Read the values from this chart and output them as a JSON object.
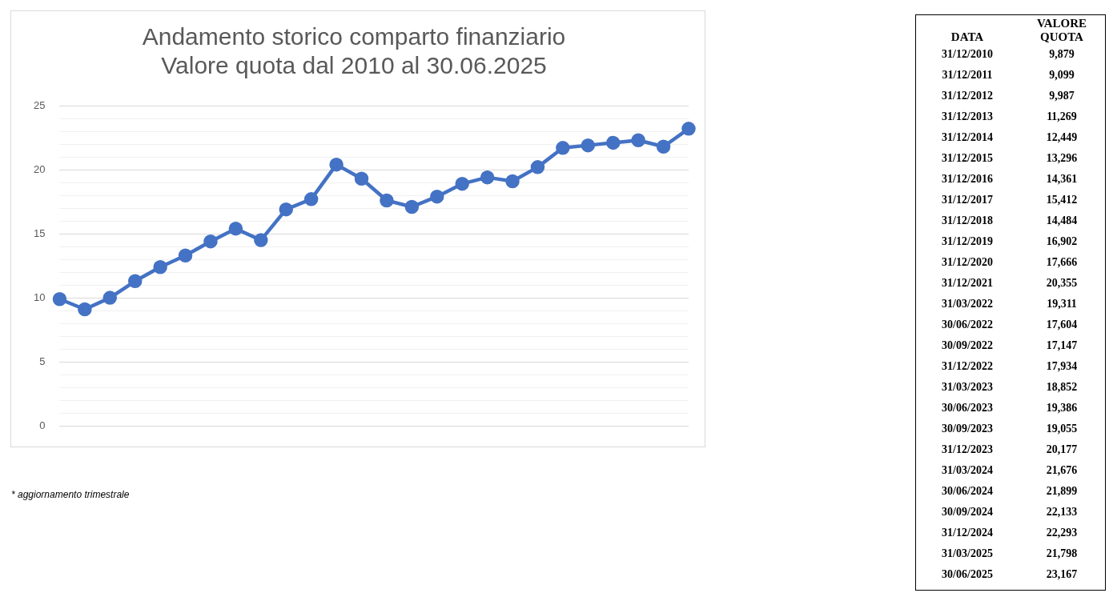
{
  "chart_data": [
    {
      "type": "line",
      "title": "Andamento storico comparto finanziario\nValore quota dal 2010 al 30.06.2025",
      "categories": [
        null,
        null,
        null,
        null,
        null,
        null,
        null,
        null,
        null,
        null,
        null,
        null,
        null,
        null,
        null,
        null,
        null,
        null,
        null,
        null,
        null,
        null,
        null,
        null,
        null,
        null
      ],
      "series": [
        {
          "color": "#4472c4",
          "values": [
            9.9,
            9.1,
            10.0,
            11.3,
            12.4,
            13.3,
            14.4,
            15.4,
            14.5,
            16.9,
            17.7,
            20.4,
            19.3,
            17.6,
            17.1,
            17.9,
            18.9,
            19.4,
            19.1,
            20.2,
            21.7,
            21.9,
            22.1,
            22.3,
            21.8,
            23.2
          ]
        }
      ],
      "ylim": [
        0,
        25
      ],
      "yticks": [
        0,
        {
          "value": 1,
          "label": null
        },
        {
          "value": 2,
          "label": null
        },
        {
          "value": 3,
          "label": null
        },
        {
          "value": 4,
          "label": null
        },
        5,
        {
          "value": 6,
          "label": null
        },
        {
          "value": 7,
          "label": null
        },
        {
          "value": 8,
          "label": null
        },
        {
          "value": 9,
          "label": null
        },
        10,
        {
          "value": 11,
          "label": null
        },
        {
          "value": 12,
          "label": null
        },
        {
          "value": 13,
          "label": null
        },
        {
          "value": 14,
          "label": null
        },
        15,
        {
          "value": 16,
          "label": null
        },
        {
          "value": 17,
          "label": null
        },
        {
          "value": 18,
          "label": null
        },
        {
          "value": 19,
          "label": null
        },
        20,
        {
          "value": 21,
          "label": null
        },
        {
          "value": 22,
          "label": null
        },
        {
          "value": 23,
          "label": null
        },
        {
          "value": 24,
          "label": null
        },
        25
      ],
      "grid": "y",
      "marker": "circle",
      "line_style": "solid",
      "tick_labels": "y",
      "annotations": [
        "* aggiornamento trimestrale"
      ]
    },
    {
      "type": "other",
      "annotations": [
        "DATA",
        "VALORE QUOTA",
        "31/12/2010",
        "9,879",
        "31/12/2011",
        "9,099",
        "31/12/2012",
        "9,987",
        "31/12/2013",
        "11,269",
        "31/12/2014",
        "12,449",
        "31/12/2015",
        "13,296",
        "31/12/2016",
        "14,361",
        "31/12/2017",
        "15,412",
        "31/12/2018",
        "14,484",
        "31/12/2019",
        "16,902",
        "31/12/2020",
        "17,666",
        "31/12/2021",
        "20,355",
        "31/03/2022",
        "19,311",
        "30/06/2022",
        "17,604",
        "30/09/2022",
        "17,147",
        "31/12/2022",
        "17,934",
        "31/03/2023",
        "18,852",
        "30/06/2023",
        "19,386",
        "30/09/2023",
        "19,055",
        "31/12/2023",
        "20,177",
        "31/03/2024",
        "21,676",
        "30/06/2024",
        "21,899",
        "30/09/2024",
        "22,133",
        "31/12/2024",
        "22,293",
        "31/03/2025",
        "21,798",
        "30/06/2025",
        "23,167"
      ]
    }
  ]
}
